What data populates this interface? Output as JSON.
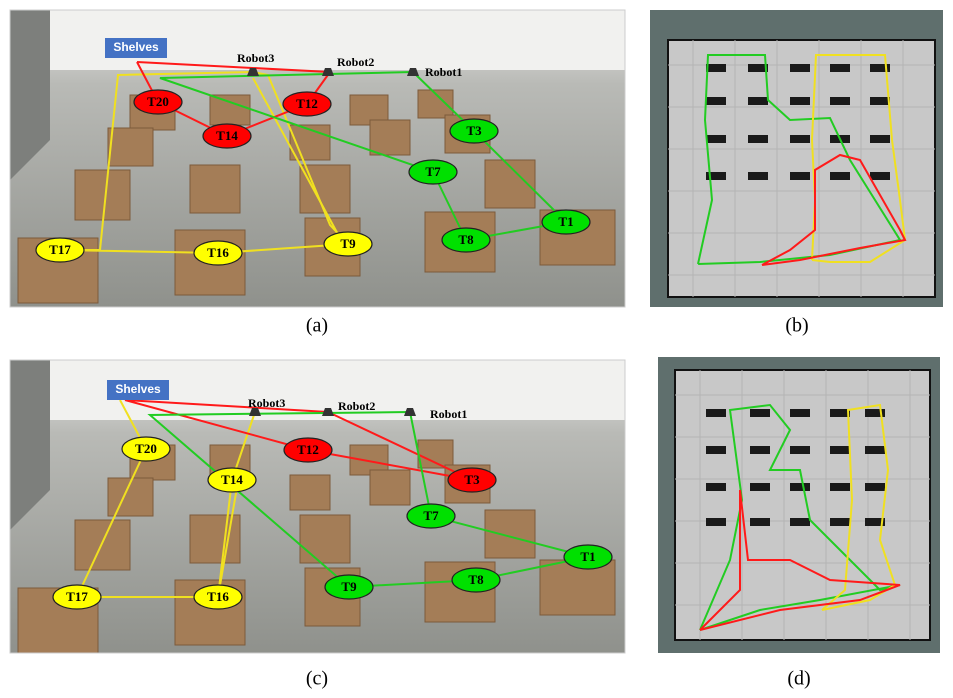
{
  "panels": [
    {
      "caption": "(a)",
      "shelves": "Shelves",
      "robots": [
        "Robot3",
        "Robot2",
        "Robot1"
      ],
      "tasks": [
        "T20",
        "T12",
        "T14",
        "T3",
        "T7",
        "T1",
        "T8",
        "T17",
        "T16",
        "T9"
      ]
    },
    {
      "caption": "(b)"
    },
    {
      "caption": "(c)",
      "shelves": "Shelves",
      "robots": [
        "Robot3",
        "Robot2",
        "Robot1"
      ],
      "tasks": [
        "T20",
        "T12",
        "T3",
        "T14",
        "T7",
        "T1",
        "T8",
        "T9",
        "T17",
        "T16"
      ]
    },
    {
      "caption": "(d)"
    }
  ]
}
